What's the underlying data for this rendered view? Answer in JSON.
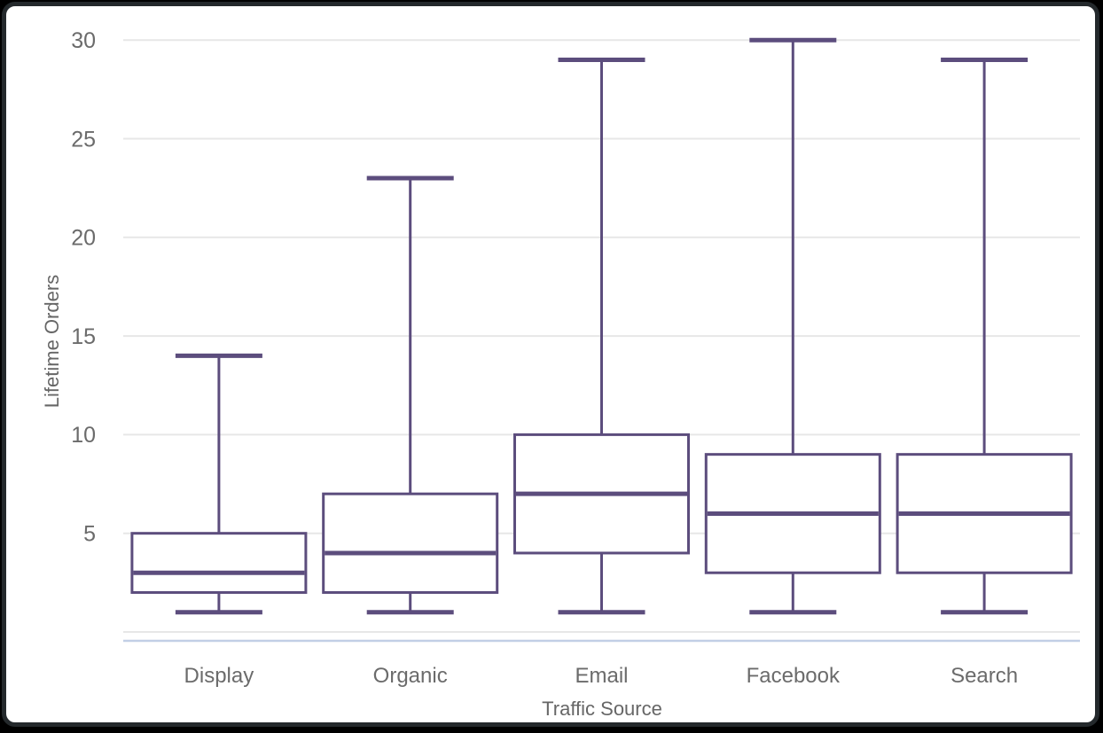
{
  "chart_data": {
    "type": "boxplot",
    "title": "",
    "xlabel": "Traffic Source",
    "ylabel": "Lifetime Orders",
    "categories": [
      "Display",
      "Organic",
      "Email",
      "Facebook",
      "Search"
    ],
    "series": [
      {
        "name": "Display",
        "min": 1,
        "q1": 2,
        "median": 3,
        "q3": 5,
        "max": 14
      },
      {
        "name": "Organic",
        "min": 1,
        "q1": 2,
        "median": 4,
        "q3": 7,
        "max": 23
      },
      {
        "name": "Email",
        "min": 1,
        "q1": 4,
        "median": 7,
        "q3": 10,
        "max": 29
      },
      {
        "name": "Facebook",
        "min": 1,
        "q1": 3,
        "median": 6,
        "q3": 9,
        "max": 30
      },
      {
        "name": "Search",
        "min": 1,
        "q1": 3,
        "median": 6,
        "q3": 9,
        "max": 29
      }
    ],
    "y_ticks": [
      "5",
      "10",
      "15",
      "20",
      "25",
      "30"
    ],
    "ylim": [
      0,
      30
    ],
    "grid": true,
    "legend": false,
    "colors": {
      "box_stroke": "#5C4D7D",
      "box_fill": "#ffffff",
      "gridline": "#e7e7e7",
      "baseline": "#e7e7e7",
      "axis_accent_line": "#c2cfe6",
      "tick_text": "#6b6b6b",
      "axis_title_text": "#666666",
      "panel_border": "#24292c",
      "panel_bg": "#ffffff",
      "outer_bg": "#000000"
    }
  }
}
